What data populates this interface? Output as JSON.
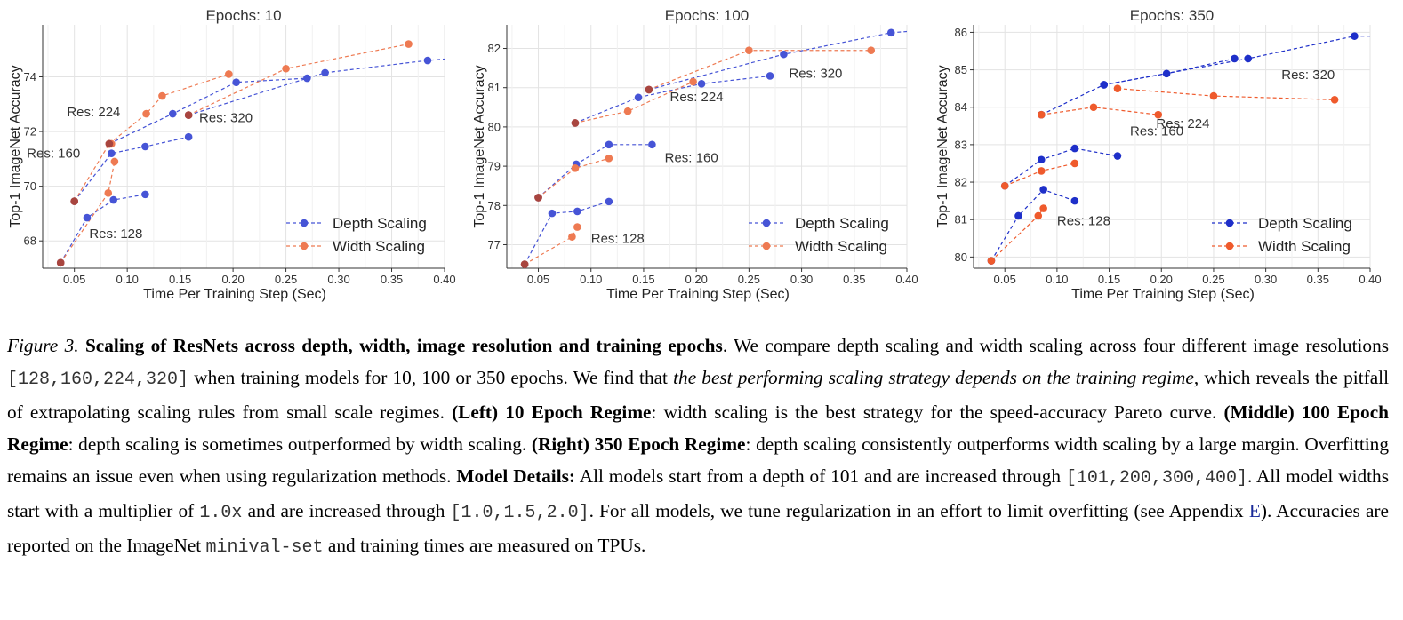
{
  "chart_data": [
    {
      "type": "line",
      "title": "Epochs: 10",
      "xlabel": "Time Per Training Step (Sec)",
      "ylabel": "Top-1 ImageNet Accuracy",
      "xlim": [
        0.02,
        0.4
      ],
      "ylim": [
        67.0,
        75.9
      ],
      "xticks": [
        0.05,
        0.1,
        0.15,
        0.2,
        0.25,
        0.3,
        0.35,
        0.4
      ],
      "xtick_labels": [
        "0.05",
        "0.10",
        "0.15",
        "0.20",
        "0.25",
        "0.30",
        "0.35",
        "0.40"
      ],
      "yticks": [
        68,
        70,
        72,
        74
      ],
      "ytick_labels": [
        "68",
        "70",
        "72",
        "74"
      ],
      "grid": true,
      "legend": "bottom-right",
      "series": [
        {
          "name": "Depth Scaling",
          "color": "#4654d6",
          "groups": [
            {
              "x": [
                0.037,
                0.062,
                0.087,
                0.117
              ],
              "y": [
                67.2,
                68.85,
                69.5,
                69.7
              ]
            },
            {
              "x": [
                0.05,
                0.085,
                0.117,
                0.158
              ],
              "y": [
                69.45,
                71.2,
                71.45,
                71.8
              ]
            },
            {
              "x": [
                0.083,
                0.143,
                0.203,
                0.27
              ],
              "y": [
                71.55,
                72.65,
                73.8,
                73.95
              ]
            },
            {
              "x": [
                0.158,
                0.287,
                0.384,
                0.415
              ],
              "y": [
                72.6,
                74.15,
                74.6,
                74.7
              ]
            }
          ]
        },
        {
          "name": "Width Scaling",
          "color": "#ee7a52",
          "groups": [
            {
              "x": [
                0.037,
                0.082,
                0.088
              ],
              "y": [
                67.2,
                69.75,
                70.9
              ]
            },
            {
              "x": [
                0.05,
                0.083,
                0.085
              ],
              "y": [
                69.45,
                71.55,
                71.55
              ]
            },
            {
              "x": [
                0.083,
                0.118,
                0.133,
                0.196
              ],
              "y": [
                71.55,
                72.65,
                73.3,
                74.1
              ]
            },
            {
              "x": [
                0.158,
                0.25,
                0.366
              ],
              "y": [
                72.6,
                74.3,
                75.2
              ]
            }
          ]
        }
      ],
      "overlap_points": [
        [
          0.037,
          67.2
        ],
        [
          0.05,
          69.45
        ],
        [
          0.083,
          71.55
        ],
        [
          0.158,
          72.6
        ]
      ],
      "annotations": [
        {
          "text": "Res: 128",
          "x": 0.064,
          "y": 68.1
        },
        {
          "text": "Res: 160",
          "x": 0.005,
          "y": 71.05
        },
        {
          "text": "Res: 224",
          "x": 0.043,
          "y": 72.55
        },
        {
          "text": "Res: 320",
          "x": 0.168,
          "y": 72.35
        }
      ]
    },
    {
      "type": "line",
      "title": "Epochs: 100",
      "xlabel": "Time Per Training Step (Sec)",
      "ylabel": "Top-1 ImageNet Accuracy",
      "xlim": [
        0.02,
        0.4
      ],
      "ylim": [
        76.4,
        82.6
      ],
      "xticks": [
        0.05,
        0.1,
        0.15,
        0.2,
        0.25,
        0.3,
        0.35,
        0.4
      ],
      "xtick_labels": [
        "0.05",
        "0.10",
        "0.15",
        "0.20",
        "0.25",
        "0.30",
        "0.35",
        "0.40"
      ],
      "yticks": [
        77,
        78,
        79,
        80,
        81,
        82
      ],
      "ytick_labels": [
        "77",
        "78",
        "79",
        "80",
        "81",
        "82"
      ],
      "grid": true,
      "legend": "bottom-right",
      "series": [
        {
          "name": "Depth Scaling",
          "color": "#4654d6",
          "groups": [
            {
              "x": [
                0.037,
                0.063,
                0.087,
                0.117
              ],
              "y": [
                76.5,
                77.8,
                77.85,
                78.1
              ]
            },
            {
              "x": [
                0.05,
                0.086,
                0.117,
                0.158
              ],
              "y": [
                78.2,
                79.05,
                79.55,
                79.55
              ]
            },
            {
              "x": [
                0.085,
                0.145,
                0.205,
                0.27
              ],
              "y": [
                80.1,
                80.75,
                81.1,
                81.3
              ]
            },
            {
              "x": [
                0.155,
                0.283,
                0.385,
                0.41
              ],
              "y": [
                80.95,
                81.85,
                82.4,
                82.45
              ]
            }
          ]
        },
        {
          "name": "Width Scaling",
          "color": "#ee7a52",
          "groups": [
            {
              "x": [
                0.037,
                0.082,
                0.087
              ],
              "y": [
                76.5,
                77.2,
                77.45
              ]
            },
            {
              "x": [
                0.05,
                0.085,
                0.117
              ],
              "y": [
                78.2,
                78.95,
                79.2
              ]
            },
            {
              "x": [
                0.085,
                0.135,
                0.197
              ],
              "y": [
                80.1,
                80.4,
                81.15
              ]
            },
            {
              "x": [
                0.155,
                0.25,
                0.366
              ],
              "y": [
                80.95,
                81.95,
                81.95
              ]
            }
          ]
        }
      ],
      "overlap_points": [
        [
          0.037,
          76.5
        ],
        [
          0.05,
          78.2
        ],
        [
          0.085,
          80.1
        ],
        [
          0.155,
          80.95
        ]
      ],
      "annotations": [
        {
          "text": "Res: 128",
          "x": 0.1,
          "y": 77.05
        },
        {
          "text": "Res: 160",
          "x": 0.17,
          "y": 79.1
        },
        {
          "text": "Res: 224",
          "x": 0.175,
          "y": 80.65
        },
        {
          "text": "Res: 320",
          "x": 0.288,
          "y": 81.25
        }
      ]
    },
    {
      "type": "line",
      "title": "Epochs: 350",
      "xlabel": "Time Per Training Step (Sec)",
      "ylabel": "Top-1 ImageNet Accuracy",
      "xlim": [
        0.02,
        0.4
      ],
      "ylim": [
        79.7,
        86.2
      ],
      "xticks": [
        0.05,
        0.1,
        0.15,
        0.2,
        0.25,
        0.3,
        0.35,
        0.4
      ],
      "xtick_labels": [
        "0.05",
        "0.10",
        "0.15",
        "0.20",
        "0.25",
        "0.30",
        "0.35",
        "0.40"
      ],
      "yticks": [
        80,
        81,
        82,
        83,
        84,
        85,
        86
      ],
      "ytick_labels": [
        "80",
        "81",
        "82",
        "83",
        "84",
        "85",
        "86"
      ],
      "grid": true,
      "legend": "bottom-right",
      "series": [
        {
          "name": "Depth Scaling",
          "color": "#1e2fc9",
          "groups": [
            {
              "x": [
                0.037,
                0.063,
                0.087,
                0.117
              ],
              "y": [
                79.9,
                81.1,
                81.8,
                81.5
              ]
            },
            {
              "x": [
                0.05,
                0.085,
                0.117,
                0.158
              ],
              "y": [
                81.9,
                82.6,
                82.9,
                82.7
              ]
            },
            {
              "x": [
                0.085,
                0.145,
                0.205,
                0.27
              ],
              "y": [
                83.8,
                84.6,
                84.9,
                85.3
              ]
            },
            {
              "x": [
                0.145,
                0.283,
                0.385,
                0.41
              ],
              "y": [
                84.6,
                85.3,
                85.9,
                85.9
              ]
            }
          ]
        },
        {
          "name": "Width Scaling",
          "color": "#ef5a2c",
          "groups": [
            {
              "x": [
                0.037,
                0.082,
                0.087
              ],
              "y": [
                79.9,
                81.1,
                81.3
              ]
            },
            {
              "x": [
                0.05,
                0.085,
                0.117
              ],
              "y": [
                81.9,
                82.3,
                82.5
              ]
            },
            {
              "x": [
                0.085,
                0.135,
                0.197
              ],
              "y": [
                83.8,
                84.0,
                83.8
              ]
            },
            {
              "x": [
                0.158,
                0.25,
                0.366
              ],
              "y": [
                84.5,
                84.3,
                84.2
              ]
            }
          ]
        }
      ],
      "overlap_points": [],
      "annotations": [
        {
          "text": "Res: 128",
          "x": 0.1,
          "y": 80.85
        },
        {
          "text": "Res: 160",
          "x": 0.17,
          "y": 83.25
        },
        {
          "text": "Res: 224",
          "x": 0.195,
          "y": 83.45
        },
        {
          "text": "Res: 320",
          "x": 0.315,
          "y": 84.75
        }
      ]
    }
  ],
  "legend": {
    "depth_label": "Depth Scaling",
    "width_label": "Width Scaling"
  },
  "caption": {
    "figure_label": "Figure 3.",
    "title": "Scaling of ResNets across depth, width, image resolution and training epochs",
    "s1": ". We compare depth scaling and width scaling across four different image resolutions ",
    "res_list": "[128,160,224,320]",
    "s2": " when training models for 10, 100 or 350 epochs. We find that ",
    "emph1": "the best performing scaling strategy depends on the training regime",
    "s3": ", which reveals the pitfall of extrapolating scaling rules from small scale regimes. ",
    "left_label": "(Left) 10 Epoch Regime",
    "s4": ": width scaling is the best strategy for the speed-accuracy Pareto curve. ",
    "middle_label": "(Middle) 100 Epoch Regime",
    "s5": ": depth scaling is sometimes outperformed by width scaling. ",
    "right_label": "(Right) 350 Epoch Regime",
    "s6": ": depth scaling consistently outperforms width scaling by a large margin. Overfitting remains an issue even when using regularization methods. ",
    "model_details_label": "Model Details:",
    "s7": " All models start from a depth of 101 and are increased through ",
    "depth_list": "[101,200,300,400]",
    "s8": ". All model widths start with a multiplier of ",
    "width_start": "1.0x",
    "s9": " and are increased through ",
    "width_list": "[1.0,1.5,2.0]",
    "s10": ". For all models, we tune regularization in an effort to limit overfitting (see Appendix ",
    "appendix_link": "E",
    "s11": "). Accuracies are reported on the ImageNet ",
    "minival": "minival-set",
    "s12": " and training times are measured on TPUs."
  }
}
